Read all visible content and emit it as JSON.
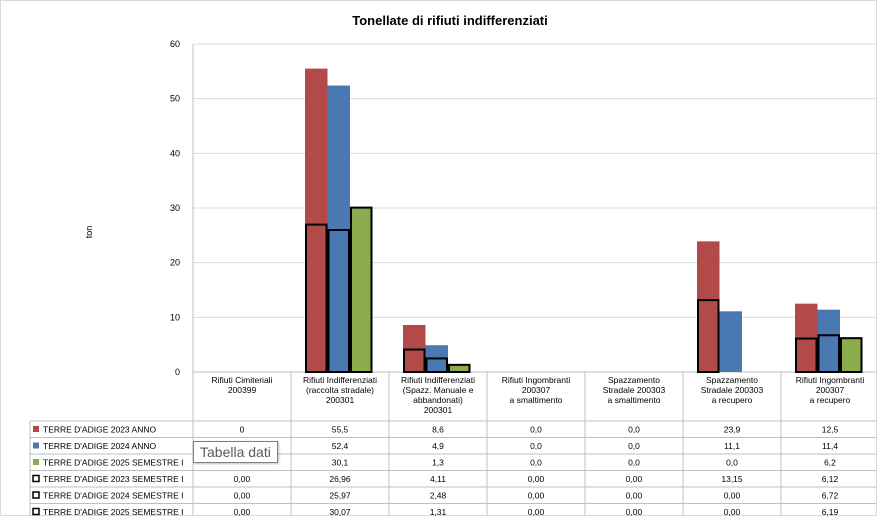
{
  "chart_data": {
    "type": "bar",
    "title": "Tonellate di rifiuti indifferenziati",
    "ylabel": "ton",
    "xlabel": "",
    "ylim": [
      0,
      60
    ],
    "yticks": [
      "0",
      "10",
      "20",
      "30",
      "40",
      "50",
      "60"
    ],
    "legend_placement": "data-table",
    "categories": [
      [
        "Rifiuti Cimiteriali",
        "200399"
      ],
      [
        "Rifiuti Indifferenziati",
        "(raccolta stradale)",
        "200301"
      ],
      [
        "Rifiuti Indifferenziati",
        "(Spazz. Manuale e",
        "abbandonati)",
        "200301"
      ],
      [
        "Rifiuti Ingombranti",
        "200307",
        "a smaltimento"
      ],
      [
        "Spazzamento",
        "Stradale 200303",
        "a smaltimento"
      ],
      [
        "Spazzamento",
        "Stradale 200303",
        "a recupero"
      ],
      [
        "Rifiuti Ingombranti",
        "200307",
        "a recupero"
      ]
    ],
    "series": [
      {
        "name": "TERRE D'ADIGE 2023 ANNO",
        "kind": "bar",
        "color": "#b24a4a",
        "values": [
          0,
          55.5,
          8.6,
          0,
          0,
          23.9,
          12.5
        ],
        "labels": [
          "0",
          "55,5",
          "8,6",
          "0,0",
          "0,0",
          "23,9",
          "12,5"
        ]
      },
      {
        "name": "TERRE D'ADIGE 2024 ANNO",
        "kind": "bar",
        "color": "#4a79b2",
        "values": [
          null,
          52.4,
          4.9,
          0,
          0,
          11.1,
          11.4
        ],
        "labels": [
          "",
          "52,4",
          "4,9",
          "0,0",
          "0,0",
          "11,1",
          "11,4"
        ]
      },
      {
        "name": "TERRE D'ADIGE 2025 SEMESTRE I",
        "kind": "bar",
        "color": "#8aab4e",
        "values": [
          null,
          30.1,
          1.3,
          0,
          0,
          0,
          6.2
        ],
        "labels": [
          "",
          "30,1",
          "1,3",
          "0,0",
          "0,0",
          "0,0",
          "6,2"
        ]
      },
      {
        "name": "TERRE D'ADIGE 2023 SEMESTRE I",
        "kind": "outline",
        "color": "#000000",
        "values": [
          0,
          26.96,
          4.11,
          0,
          0,
          13.15,
          6.12
        ],
        "labels": [
          "0,00",
          "26,96",
          "4,11",
          "0,00",
          "0,00",
          "13,15",
          "6,12"
        ]
      },
      {
        "name": "TERRE D'ADIGE 2024 SEMESTRE I",
        "kind": "outline",
        "color": "#000000",
        "values": [
          0,
          25.97,
          2.48,
          0,
          0,
          0,
          6.72
        ],
        "labels": [
          "0,00",
          "25,97",
          "2,48",
          "0,00",
          "0,00",
          "0,00",
          "6,72"
        ]
      },
      {
        "name": "TERRE D'ADIGE 2025 SEMESTRE I",
        "kind": "outline",
        "color": "#000000",
        "values": [
          0,
          30.07,
          1.31,
          0,
          0,
          0,
          6.19
        ],
        "labels": [
          "0,00",
          "30,07",
          "1,31",
          "0,00",
          "0,00",
          "0,00",
          "6,19"
        ]
      }
    ]
  },
  "tooltip": {
    "text": "Tabella dati"
  }
}
